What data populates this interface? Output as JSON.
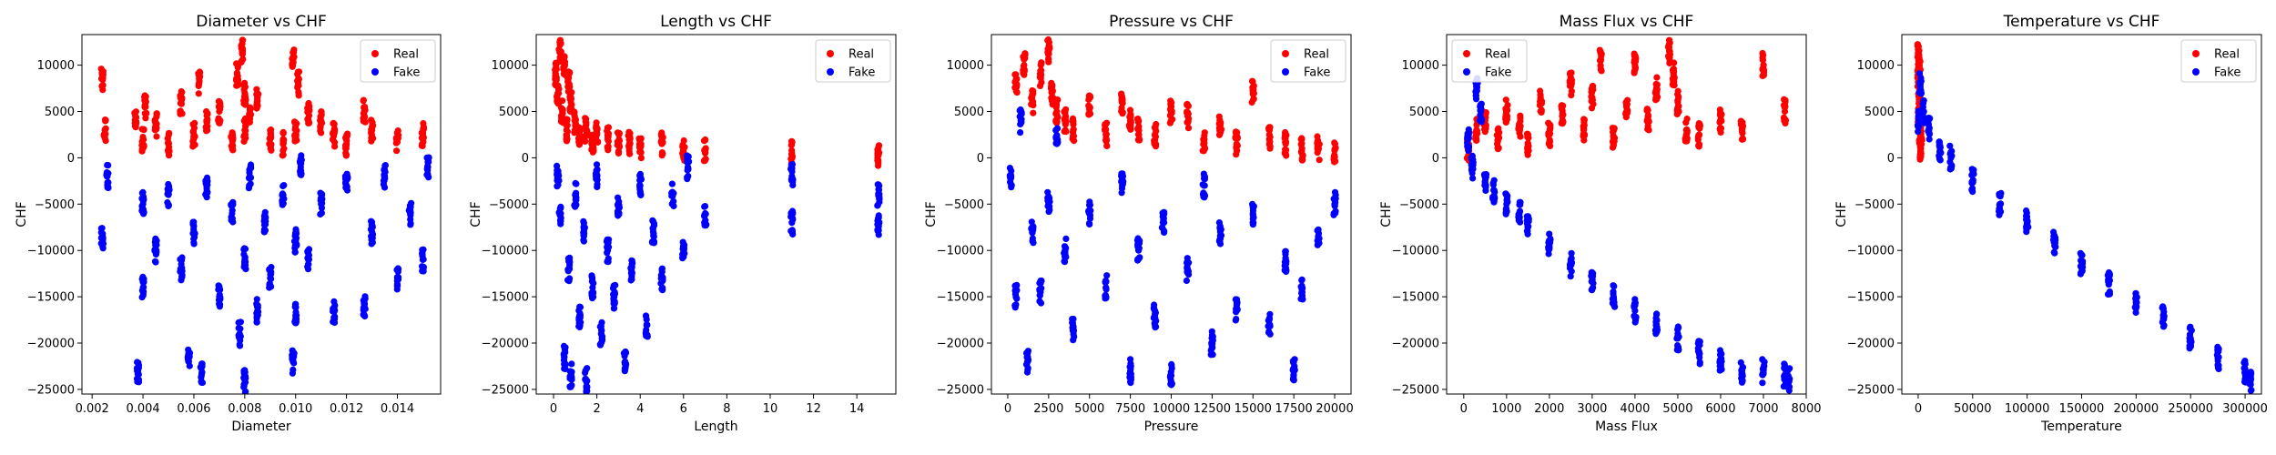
{
  "chart_data": [
    {
      "type": "scatter",
      "title": "Diameter vs CHF",
      "xlabel": "Diameter",
      "ylabel": "CHF",
      "xlim": [
        0.0016,
        0.0157
      ],
      "ylim": [
        -25500,
        13300
      ],
      "xticks": [
        0.002,
        0.004,
        0.006,
        0.008,
        0.01,
        0.012,
        0.014
      ],
      "xtick_labels": [
        "0.002",
        "0.004",
        "0.006",
        "0.008",
        "0.010",
        "0.012",
        "0.014"
      ],
      "yticks": [
        10000,
        5000,
        0,
        -5000,
        -10000,
        -15000,
        -20000,
        -25000
      ],
      "ytick_labels": [
        "10000",
        "5000",
        "0",
        "−5000",
        "−10000",
        "−15000",
        "−20000",
        "−25000"
      ],
      "legend": "top-right",
      "series": [
        {
          "name": "Real",
          "color": "#ff0000",
          "x": [
            0.0024,
            0.0025,
            0.0037,
            0.004,
            0.0041,
            0.0045,
            0.005,
            0.0055,
            0.006,
            0.0062,
            0.0065,
            0.007,
            0.0075,
            0.0077,
            0.0079,
            0.008,
            0.008,
            0.0082,
            0.0085,
            0.009,
            0.0095,
            0.0099,
            0.01,
            0.0101,
            0.0105,
            0.011,
            0.0115,
            0.012,
            0.0127,
            0.013,
            0.014,
            0.015
          ],
          "y": [
            8500,
            3000,
            4000,
            2000,
            5500,
            3500,
            1500,
            6000,
            2500,
            8000,
            4000,
            5000,
            2000,
            9000,
            11500,
            7000,
            3000,
            4500,
            6500,
            2000,
            1500,
            10500,
            3000,
            8000,
            5000,
            4000,
            2500,
            1500,
            5000,
            3000,
            2000,
            2500
          ]
        },
        {
          "name": "Fake",
          "color": "#0000ff",
          "x": [
            0.0024,
            0.0026,
            0.0038,
            0.004,
            0.004,
            0.0045,
            0.005,
            0.0055,
            0.0058,
            0.006,
            0.0063,
            0.0065,
            0.007,
            0.0075,
            0.0078,
            0.008,
            0.008,
            0.0082,
            0.0085,
            0.0088,
            0.009,
            0.0095,
            0.0099,
            0.01,
            0.01,
            0.0102,
            0.0105,
            0.011,
            0.0115,
            0.012,
            0.0127,
            0.013,
            0.0135,
            0.014,
            0.0145,
            0.015,
            0.0152
          ],
          "y": [
            -8500,
            -2000,
            -23000,
            -14000,
            -5000,
            -10000,
            -4000,
            -12000,
            -21500,
            -8000,
            -23500,
            -3000,
            -15000,
            -6000,
            -19000,
            -24000,
            -11000,
            -2000,
            -16500,
            -7000,
            -13000,
            -4000,
            -22000,
            -9000,
            -17000,
            -1000,
            -11000,
            -5000,
            -16500,
            -3000,
            -16000,
            -8000,
            -2000,
            -13000,
            -6000,
            -11000,
            -1000
          ]
        }
      ]
    },
    {
      "type": "scatter",
      "title": "Length vs CHF",
      "xlabel": "Length",
      "ylabel": "CHF",
      "xlim": [
        -0.8,
        15.8
      ],
      "ylim": [
        -25500,
        13300
      ],
      "xticks": [
        0,
        2,
        4,
        6,
        8,
        10,
        12,
        14
      ],
      "xtick_labels": [
        "0",
        "2",
        "4",
        "6",
        "8",
        "10",
        "12",
        "14"
      ],
      "yticks": [
        10000,
        5000,
        0,
        -5000,
        -10000,
        -15000,
        -20000,
        -25000
      ],
      "ytick_labels": [
        "10000",
        "5000",
        "0",
        "−5000",
        "−10000",
        "−15000",
        "−20000",
        "−25000"
      ],
      "legend": "top-right",
      "series": [
        {
          "name": "Real",
          "color": "#ff0000",
          "x": [
            0.1,
            0.2,
            0.3,
            0.4,
            0.5,
            0.6,
            0.7,
            0.8,
            1.0,
            1.2,
            1.5,
            1.8,
            2.0,
            2.5,
            3.0,
            3.5,
            4.0,
            5.0,
            6.0,
            7.0,
            11.0,
            15.0
          ],
          "y": [
            9000,
            7000,
            11500,
            5000,
            10000,
            3000,
            8000,
            6000,
            4000,
            2500,
            3000,
            1500,
            2500,
            2000,
            1500,
            1500,
            1000,
            1500,
            1000,
            800,
            500,
            300
          ]
        },
        {
          "name": "Fake",
          "color": "#0000ff",
          "x": [
            0.2,
            0.3,
            0.5,
            0.7,
            0.8,
            1.0,
            1.2,
            1.4,
            1.5,
            1.8,
            2.0,
            2.2,
            2.5,
            2.8,
            3.0,
            3.3,
            3.6,
            4.0,
            4.3,
            4.6,
            5.0,
            5.5,
            6.0,
            6.2,
            7.0,
            11.0,
            11.0,
            15.0,
            15.0
          ],
          "y": [
            -2000,
            -6000,
            -21500,
            -12000,
            -23500,
            -4000,
            -17000,
            -8000,
            -24000,
            -14000,
            -2000,
            -19000,
            -10000,
            -15000,
            -5000,
            -22000,
            -12000,
            -3000,
            -18000,
            -8000,
            -13000,
            -4000,
            -10000,
            -1000,
            -6000,
            -7000,
            -2000,
            -7000,
            -4000
          ]
        }
      ]
    },
    {
      "type": "scatter",
      "title": "Pressure vs CHF",
      "xlabel": "Pressure",
      "ylabel": "CHF",
      "xlim": [
        -1000,
        21000
      ],
      "ylim": [
        -25500,
        13300
      ],
      "xticks": [
        0,
        2500,
        5000,
        7500,
        10000,
        12500,
        15000,
        17500,
        20000
      ],
      "xtick_labels": [
        "0",
        "2500",
        "5000",
        "7500",
        "10000",
        "12500",
        "15000",
        "17500",
        "20000"
      ],
      "yticks": [
        10000,
        5000,
        0,
        -5000,
        -10000,
        -15000,
        -20000,
        -25000
      ],
      "ytick_labels": [
        "10000",
        "5000",
        "0",
        "−5000",
        "−10000",
        "−15000",
        "−20000",
        "−25000"
      ],
      "legend": "top-right",
      "series": [
        {
          "name": "Real",
          "color": "#ff0000",
          "x": [
            500,
            1000,
            1500,
            2000,
            2500,
            2700,
            3000,
            3500,
            4000,
            5000,
            6000,
            7000,
            7500,
            8000,
            9000,
            10000,
            11000,
            12000,
            13000,
            14000,
            15000,
            16000,
            17000,
            18000,
            19000,
            20000
          ],
          "y": [
            8000,
            10000,
            6000,
            9000,
            11500,
            7000,
            5000,
            4000,
            3000,
            5500,
            2500,
            6000,
            4000,
            3000,
            2500,
            5000,
            4500,
            2000,
            3500,
            1500,
            7000,
            2000,
            1500,
            1000,
            1000,
            800
          ]
        },
        {
          "name": "Fake",
          "color": "#0000ff",
          "x": [
            200,
            500,
            800,
            1200,
            1500,
            2000,
            2500,
            3000,
            3500,
            4000,
            5000,
            6000,
            7000,
            7500,
            8000,
            9000,
            9500,
            10000,
            11000,
            12000,
            12500,
            13000,
            14000,
            15000,
            16000,
            17000,
            17500,
            18000,
            19000,
            20000
          ],
          "y": [
            -2000,
            -15000,
            4000,
            -22000,
            -8000,
            -14500,
            -5000,
            2000,
            -10000,
            -18500,
            -6000,
            -14000,
            -3000,
            -23000,
            -10000,
            -17000,
            -7000,
            -23500,
            -12000,
            -3000,
            -20000,
            -8000,
            -16500,
            -6000,
            -18000,
            -11000,
            -23000,
            -14000,
            -9000,
            -5000
          ]
        }
      ]
    },
    {
      "type": "scatter",
      "title": "Mass Flux vs CHF",
      "xlabel": "Mass Flux",
      "ylabel": "CHF",
      "xlim": [
        -400,
        8000
      ],
      "ylim": [
        -25500,
        13300
      ],
      "xticks": [
        0,
        1000,
        2000,
        3000,
        4000,
        5000,
        6000,
        7000,
        8000
      ],
      "xtick_labels": [
        "0",
        "1000",
        "2000",
        "3000",
        "4000",
        "5000",
        "6000",
        "7000",
        "8000"
      ],
      "yticks": [
        10000,
        5000,
        0,
        -5000,
        -10000,
        -15000,
        -20000,
        -25000
      ],
      "ytick_labels": [
        "10000",
        "5000",
        "0",
        "−5000",
        "−10000",
        "−15000",
        "−20000",
        "−25000"
      ],
      "legend": "top-left",
      "series": [
        {
          "name": "Real",
          "color": "#ff0000",
          "x": [
            100,
            300,
            500,
            800,
            1000,
            1300,
            1500,
            1800,
            2000,
            2300,
            2500,
            2800,
            3000,
            3200,
            3500,
            3800,
            4000,
            4300,
            4500,
            4800,
            4900,
            5000,
            5200,
            5500,
            6000,
            6500,
            7000,
            7500
          ],
          "y": [
            1000,
            3000,
            4000,
            2000,
            5000,
            3500,
            1500,
            6000,
            2500,
            4500,
            8000,
            3000,
            6500,
            10500,
            2000,
            5500,
            10000,
            4000,
            7500,
            11500,
            9000,
            6000,
            3000,
            2500,
            4000,
            3000,
            10000,
            5000
          ]
        },
        {
          "name": "Fake",
          "color": "#0000ff",
          "x": [
            100,
            200,
            300,
            400,
            500,
            700,
            1000,
            1300,
            1500,
            2000,
            2500,
            3000,
            3500,
            4000,
            4500,
            5000,
            5500,
            6000,
            6500,
            7000,
            7500,
            7600
          ],
          "y": [
            2000,
            -1000,
            7500,
            5000,
            -2500,
            -3500,
            -5000,
            -6000,
            -7500,
            -9500,
            -11500,
            -13000,
            -15000,
            -16500,
            -18000,
            -19500,
            -21000,
            -22000,
            -23000,
            -23000,
            -23500,
            -24000
          ]
        }
      ]
    },
    {
      "type": "scatter",
      "title": "Temperature vs CHF",
      "xlabel": "Temperature",
      "ylabel": "CHF",
      "xlim": [
        -15000,
        315000
      ],
      "ylim": [
        -25500,
        13300
      ],
      "xticks": [
        0,
        50000,
        100000,
        150000,
        200000,
        250000,
        300000
      ],
      "xtick_labels": [
        "0",
        "50000",
        "100000",
        "150000",
        "200000",
        "250000",
        "300000"
      ],
      "yticks": [
        10000,
        5000,
        0,
        -5000,
        -10000,
        -15000,
        -20000,
        -25000
      ],
      "ytick_labels": [
        "10000",
        "5000",
        "0",
        "−5000",
        "−10000",
        "−15000",
        "−20000",
        "−25000"
      ],
      "legend": "top-right",
      "series": [
        {
          "name": "Real",
          "color": "#ff0000",
          "x": [
            200,
            400,
            600,
            800,
            1000,
            1200,
            1500,
            1800,
            2000,
            2500
          ],
          "y": [
            11500,
            9000,
            7000,
            5000,
            3000,
            10000,
            6000,
            2000,
            4000,
            1000
          ]
        },
        {
          "name": "Fake",
          "color": "#0000ff",
          "x": [
            500,
            2000,
            5000,
            10000,
            20000,
            30000,
            50000,
            75000,
            100000,
            125000,
            150000,
            175000,
            200000,
            225000,
            250000,
            275000,
            300000,
            305000
          ],
          "y": [
            4000,
            8000,
            5000,
            3000,
            1000,
            0,
            -2500,
            -5000,
            -7000,
            -9000,
            -11500,
            -13500,
            -15500,
            -17000,
            -19500,
            -21500,
            -23000,
            -24000
          ]
        }
      ]
    }
  ]
}
